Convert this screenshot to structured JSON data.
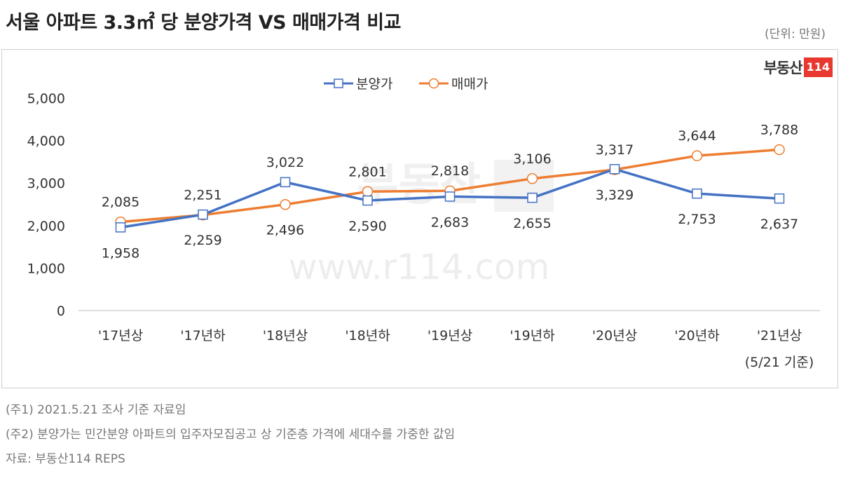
{
  "header": {
    "title": "서울 아파트 3.3㎡ 당 분양가격 VS 매매가격 비교",
    "unit": "(단위: 만원)"
  },
  "logo": {
    "text": "부동산",
    "number": "114"
  },
  "watermark": {
    "logo_text": "부동산",
    "url": "www.r114.com"
  },
  "chart_data": {
    "type": "line",
    "categories": [
      "'17년상",
      "'17년하",
      "'18년상",
      "'18년하",
      "'19년상",
      "'19년하",
      "'20년상",
      "'20년하",
      "'21년상"
    ],
    "category_note": "(5/21 기준)",
    "y_ticks": [
      "0",
      "1,000",
      "2,000",
      "3,000",
      "4,000",
      "5,000"
    ],
    "ylim": [
      0,
      5000
    ],
    "legend_position": "top-center",
    "grid": false,
    "series": [
      {
        "name": "분양가",
        "color": "#4472c4",
        "marker": "square",
        "values": [
          1958,
          2259,
          3022,
          2590,
          2683,
          2655,
          3329,
          2753,
          2637
        ],
        "labels": [
          "1,958",
          "2,259",
          "3,022",
          "2,590",
          "2,683",
          "2,655",
          "3,329",
          "2,753",
          "2,637"
        ],
        "label_pos": [
          "below",
          "below",
          "above",
          "below",
          "below",
          "below",
          "below",
          "below",
          "below"
        ]
      },
      {
        "name": "매매가",
        "color": "#ed7d31",
        "marker": "circle",
        "values": [
          2085,
          2251,
          2496,
          2801,
          2818,
          3106,
          3317,
          3644,
          3788
        ],
        "labels": [
          "2,085",
          "2,251",
          "2,496",
          "2,801",
          "2,818",
          "3,106",
          "3,317",
          "3,644",
          "3,788"
        ],
        "label_pos": [
          "above",
          "above",
          "below",
          "above",
          "above",
          "above",
          "above",
          "above",
          "above"
        ]
      }
    ]
  },
  "notes": [
    "(주1) 2021.5.21 조사 기준 자료임",
    "(주2) 분양가는 민간분양 아파트의 입주자모집공고 상 기준층 가격에 세대수를 가중한 값임",
    "자료: 부동산114 REPS"
  ]
}
